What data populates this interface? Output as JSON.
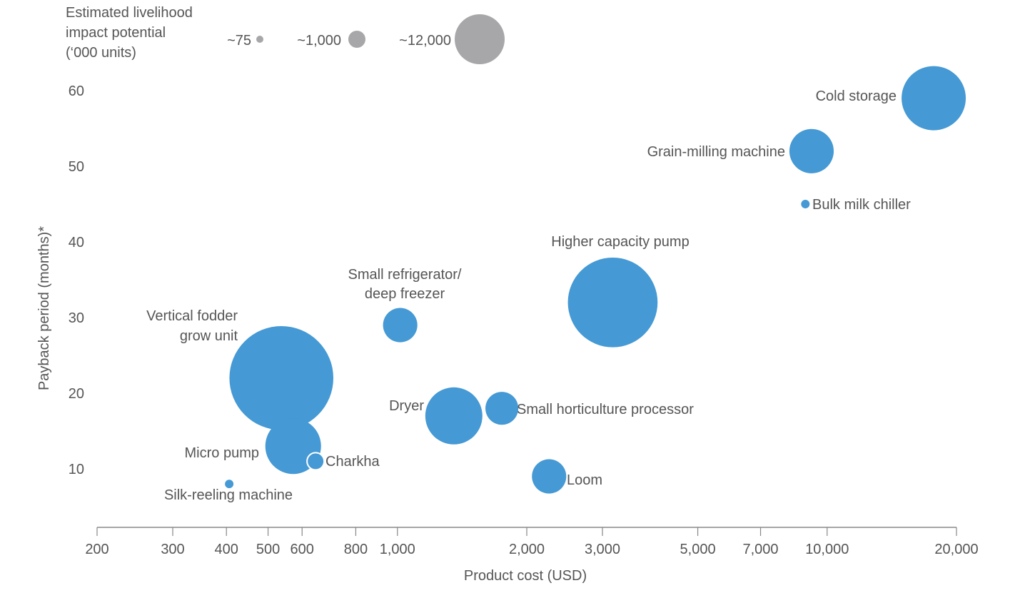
{
  "chart_data": {
    "type": "scatter",
    "subtype": "bubble",
    "xlabel": "Product cost (USD)",
    "ylabel": "Payback period (months)*",
    "xscale": "log",
    "xlim": [
      200,
      20000
    ],
    "ylim": [
      5,
      65
    ],
    "xticks": [
      200,
      300,
      400,
      500,
      600,
      800,
      1000,
      2000,
      3000,
      5000,
      7000,
      10000,
      20000
    ],
    "xtick_labels": [
      "200",
      "300",
      "400",
      "500",
      "600",
      "800",
      "1,000",
      "2,000",
      "3,000",
      "5,000",
      "7,000",
      "10,000",
      "20,000"
    ],
    "yticks": [
      10,
      20,
      30,
      40,
      50,
      60
    ],
    "ytick_labels": [
      "10",
      "20",
      "30",
      "40",
      "50",
      "60"
    ],
    "grid": false,
    "bubble_color": "#4599d4",
    "legend": {
      "title": [
        "Estimated livelihood",
        "impact potential",
        "(‘000 units)"
      ],
      "placement": "top-left",
      "color": "#a7a7a9",
      "entries": [
        {
          "label": "~75",
          "size": 75
        },
        {
          "label": "~1,000",
          "size": 1000
        },
        {
          "label": "~12,000",
          "size": 12000
        }
      ]
    },
    "points": [
      {
        "label": [
          "Cold storage"
        ],
        "x": 17700,
        "y": 59,
        "size": 21000
      },
      {
        "label": [
          "Grain-milling machine"
        ],
        "x": 9200,
        "y": 52,
        "size": 10000
      },
      {
        "label": [
          "Bulk milk chiller"
        ],
        "x": 8900,
        "y": 45,
        "size": 370
      },
      {
        "label": [
          "Higher capacity pump"
        ],
        "x": 3170,
        "y": 32,
        "size": 41000
      },
      {
        "label": [
          "Small refrigerator/",
          "deep freezer"
        ],
        "x": 1015,
        "y": 29,
        "size": 6000
      },
      {
        "label": [
          "Vertical fodder",
          "grow unit"
        ],
        "x": 537,
        "y": 22,
        "size": 55000
      },
      {
        "label": [
          "Dryer"
        ],
        "x": 1353,
        "y": 17,
        "size": 16600
      },
      {
        "label": [
          "Small horticulture processor"
        ],
        "x": 1750,
        "y": 18,
        "size": 5500
      },
      {
        "label": [
          "Micro pump"
        ],
        "x": 572,
        "y": 13,
        "size": 15800
      },
      {
        "label": [
          "Charkha"
        ],
        "x": 645,
        "y": 11,
        "size": 1500
      },
      {
        "label": [
          "Loom"
        ],
        "x": 2254,
        "y": 9,
        "size": 6000
      },
      {
        "label": [
          "Silk-reeling machine"
        ],
        "x": 406,
        "y": 8,
        "size": 370
      }
    ]
  }
}
